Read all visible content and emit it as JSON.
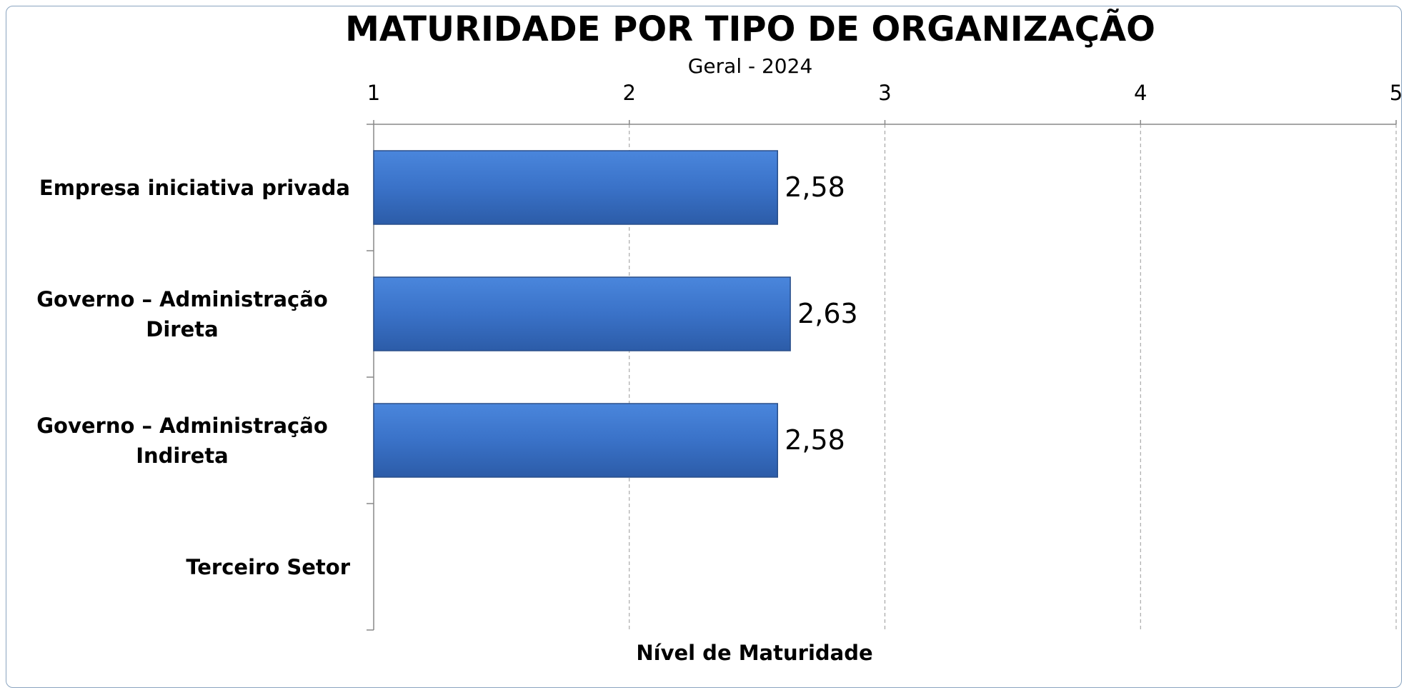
{
  "chart_data": {
    "type": "bar",
    "orientation": "horizontal",
    "title": "MATURIDADE POR TIPO DE ORGANIZAÇÃO",
    "subtitle": "Geral - 2024",
    "x_label": "Nível de Maturidade",
    "categories": [
      "Empresa iniciativa privada",
      "Governo – Administração Direta",
      "Governo – Administração Indireta",
      "Terceiro Setor"
    ],
    "values": [
      2.58,
      2.63,
      2.58,
      null
    ],
    "value_labels": [
      "2,58",
      "2,63",
      "2,58",
      null
    ],
    "color": "#3a72c8",
    "xlim": [
      1,
      5
    ],
    "xticks": [
      1,
      2,
      3,
      4,
      5
    ],
    "grid": true
  }
}
